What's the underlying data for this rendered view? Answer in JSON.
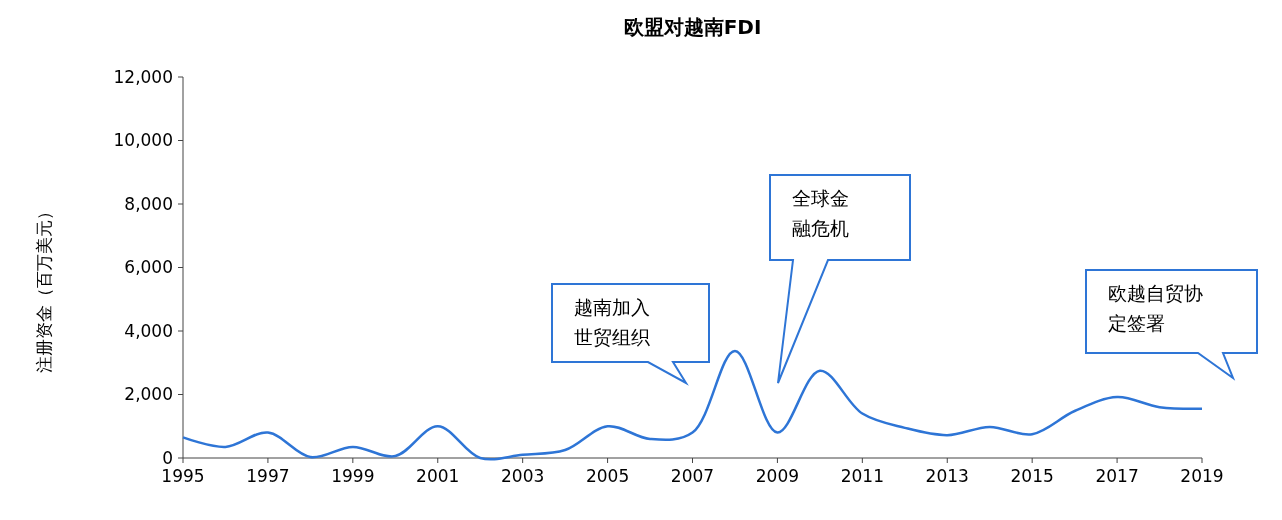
{
  "chart_data": {
    "type": "line",
    "title": "欧盟对越南FDI",
    "ylabel": "注册资金（百万美元）",
    "x": [
      1995,
      1996,
      1997,
      1998,
      1999,
      2000,
      2001,
      2002,
      2003,
      2004,
      2005,
      2006,
      2007,
      2008,
      2009,
      2010,
      2011,
      2012,
      2013,
      2014,
      2015,
      2016,
      2017,
      2018,
      2019
    ],
    "series": [
      {
        "color": "#2e75d6",
        "values": [
          650,
          350,
          800,
          30,
          350,
          60,
          1000,
          0,
          100,
          250,
          1000,
          600,
          800,
          3370,
          800,
          2750,
          1400,
          950,
          720,
          980,
          750,
          1480,
          1920,
          1600,
          1550
        ]
      }
    ],
    "xlim": [
      1995,
      2019
    ],
    "xticks": [
      1995,
      1997,
      1999,
      2001,
      2003,
      2005,
      2007,
      2009,
      2011,
      2013,
      2015,
      2017,
      2019
    ],
    "ylim": [
      0,
      12000
    ],
    "yticks": [
      0,
      {
        "value": 2000,
        "label": "2,000"
      },
      {
        "value": 4000,
        "label": "4,000"
      },
      {
        "value": 6000,
        "label": "6,000"
      },
      {
        "value": 8000,
        "label": "8,000"
      },
      {
        "value": 10000,
        "label": "10,000"
      },
      {
        "value": 12000,
        "label": "12,000"
      }
    ],
    "grid": false,
    "marker": "none",
    "line_style": "solid",
    "annotations": [
      "越南加入世贸组织",
      "全球金融危机",
      "欧越自贸协定签署"
    ]
  }
}
